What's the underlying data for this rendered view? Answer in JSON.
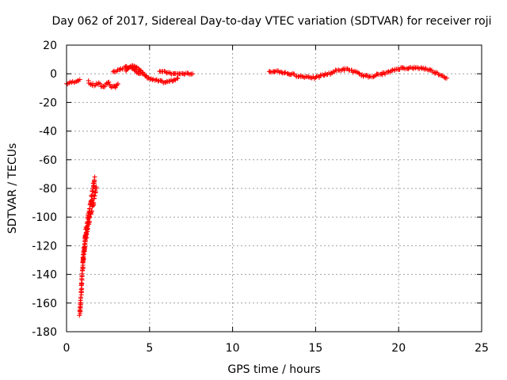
{
  "chart_data": {
    "type": "scatter",
    "title": "Day 062 of 2017, Sidereal Day-to-day VTEC variation (SDTVAR) for receiver roji",
    "xlabel": "GPS time / hours",
    "ylabel": "SDTVAR / TECUs",
    "xlim": [
      0,
      25
    ],
    "ylim": [
      -180,
      20
    ],
    "xticks": [
      0,
      5,
      10,
      15,
      20,
      25
    ],
    "yticks": [
      20,
      0,
      -20,
      -40,
      -60,
      -80,
      -100,
      -120,
      -140,
      -160,
      -180
    ],
    "grid": true,
    "marker": "plus",
    "series_color": "#ff0000",
    "series": [
      {
        "name": "SDTVAR",
        "segments": [
          {
            "x": [
              0.0,
              0.3,
              0.6,
              0.8
            ],
            "y": [
              -7,
              -6,
              -5,
              -4
            ],
            "spread": 1.5
          },
          {
            "x": [
              1.3,
              1.6,
              1.9,
              2.2,
              2.5,
              2.8,
              3.1
            ],
            "y": [
              -6,
              -8,
              -7,
              -9,
              -6,
              -10,
              -7
            ],
            "spread": 2.5
          },
          {
            "x": [
              2.8,
              3.1,
              3.4,
              3.7,
              4.0,
              4.3,
              4.7,
              5.1,
              5.5,
              5.9,
              6.3,
              6.7
            ],
            "y": [
              1,
              2,
              4,
              5,
              4,
              1,
              -1,
              -4,
              -5,
              -6,
              -5,
              -3
            ],
            "spread": 1.5
          },
          {
            "x": [
              3.6,
              3.8,
              4.0,
              4.3,
              4.6
            ],
            "y": [
              2,
              5,
              6,
              4,
              1
            ],
            "spread": 1.0
          },
          {
            "x": [
              5.6,
              6.0,
              6.4,
              6.8,
              7.2,
              7.6
            ],
            "y": [
              2,
              1,
              0,
              0,
              0,
              0
            ],
            "spread": 1.0
          },
          {
            "x": [
              0.8,
              0.9,
              1.0,
              1.15,
              1.3,
              1.45,
              1.6,
              1.7
            ],
            "y": [
              -168,
              -150,
              -130,
              -112,
              -100,
              -90,
              -80,
              -72
            ],
            "spread": 4
          },
          {
            "x": [
              1.0,
              1.15,
              1.3,
              1.45,
              1.6,
              1.8
            ],
            "y": [
              -130,
              -115,
              -105,
              -98,
              -90,
              -80
            ],
            "spread": 4
          },
          {
            "x": [
              12.2,
              12.6,
              13.0,
              13.4,
              13.8,
              14.2,
              14.6,
              15.0,
              15.4,
              15.8,
              16.2,
              16.6,
              17.0,
              17.4,
              17.8,
              18.2,
              18.6,
              19.0,
              19.4,
              19.8,
              20.2,
              20.6,
              21.0,
              21.4,
              21.8,
              22.2,
              22.6,
              22.9
            ],
            "y": [
              1,
              2,
              1,
              0,
              -1,
              -2,
              -2,
              -3,
              -1,
              0,
              2,
              3,
              3,
              1,
              -1,
              -2,
              -1,
              0,
              1,
              3,
              4,
              4,
              4,
              4,
              3,
              1,
              -1,
              -3
            ],
            "spread": 1.5
          }
        ]
      }
    ]
  }
}
